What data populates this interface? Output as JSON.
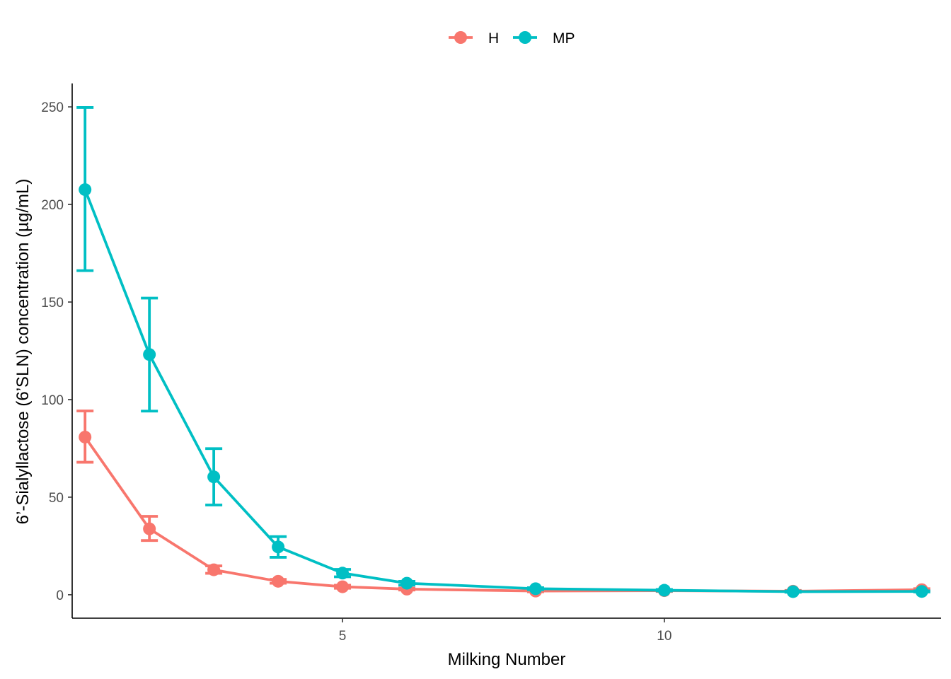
{
  "chart_data": {
    "type": "line",
    "title": "",
    "xlabel": "Milking Number",
    "ylabel": "6’-Sialyllactose (6’SLN) concentration (µg/mL)",
    "xlim": [
      0.8,
      14.3
    ],
    "ylim": [
      -12,
      262
    ],
    "x_ticks": [
      "5",
      "10"
    ],
    "y_ticks": [
      "0",
      "50",
      "100",
      "150",
      "200",
      "250"
    ],
    "legend_position": "top",
    "grid": false,
    "series": [
      {
        "name": "H",
        "color": "#F8766D",
        "points": [
          {
            "x": 1,
            "y": 80.8,
            "lo": 67.9,
            "hi": 94.2
          },
          {
            "x": 2,
            "y": 33.8,
            "lo": 27.8,
            "hi": 40.2
          },
          {
            "x": 3,
            "y": 12.8,
            "lo": 11.0,
            "hi": 14.8
          },
          {
            "x": 4,
            "y": 6.9,
            "lo": 5.9,
            "hi": 7.9
          },
          {
            "x": 5,
            "y": 4.1,
            "lo": 3.3,
            "hi": 4.9
          },
          {
            "x": 6,
            "y": 2.9,
            "lo": 2.4,
            "hi": 3.4
          },
          {
            "x": 8,
            "y": 1.9,
            "lo": 1.5,
            "hi": 2.3
          },
          {
            "x": 10,
            "y": 2.1,
            "lo": 1.7,
            "hi": 2.5
          },
          {
            "x": 12,
            "y": 1.8,
            "lo": 1.4,
            "hi": 2.2
          },
          {
            "x": 14,
            "y": 2.6,
            "lo": 2.1,
            "hi": 3.1
          }
        ]
      },
      {
        "name": "MP",
        "color": "#00BFC4",
        "points": [
          {
            "x": 1,
            "y": 207.6,
            "lo": 166.1,
            "hi": 249.7
          },
          {
            "x": 2,
            "y": 123.1,
            "lo": 94.1,
            "hi": 152.0
          },
          {
            "x": 3,
            "y": 60.4,
            "lo": 46.0,
            "hi": 74.9
          },
          {
            "x": 4,
            "y": 24.5,
            "lo": 19.2,
            "hi": 29.8
          },
          {
            "x": 5,
            "y": 11.1,
            "lo": 9.2,
            "hi": 13.0
          },
          {
            "x": 6,
            "y": 5.9,
            "lo": 4.9,
            "hi": 6.9
          },
          {
            "x": 8,
            "y": 3.1,
            "lo": 2.6,
            "hi": 3.6
          },
          {
            "x": 10,
            "y": 2.3,
            "lo": 1.9,
            "hi": 2.7
          },
          {
            "x": 12,
            "y": 1.6,
            "lo": 1.3,
            "hi": 1.9
          },
          {
            "x": 14,
            "y": 1.7,
            "lo": 1.4,
            "hi": 2.0
          }
        ]
      }
    ]
  }
}
